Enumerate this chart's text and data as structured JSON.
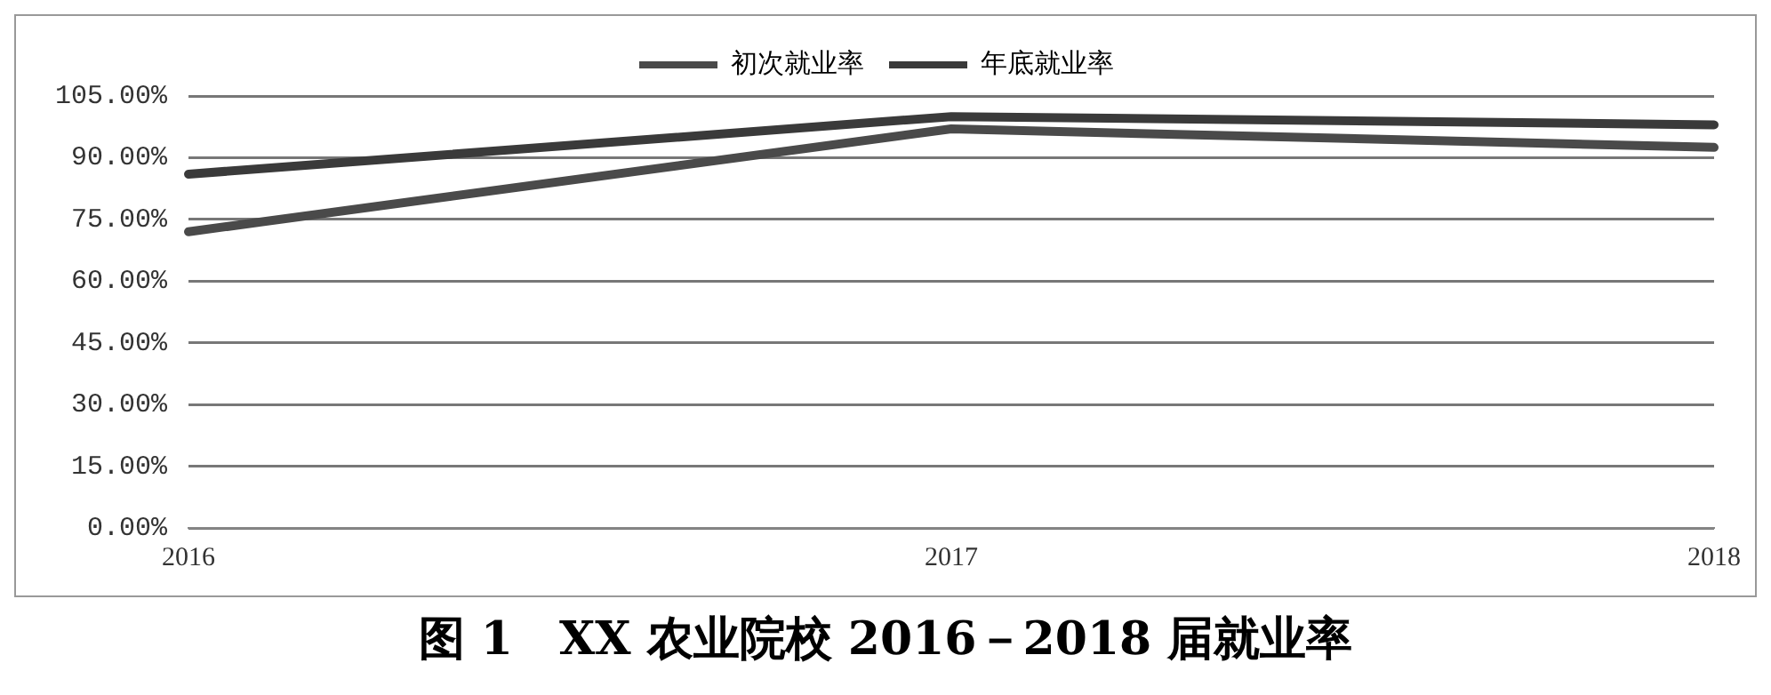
{
  "chart_data": {
    "type": "line",
    "title": "图 1　XX 农业院校 2016－2018 届就业率",
    "categories": [
      "2016",
      "2017",
      "2018"
    ],
    "series": [
      {
        "name": "初次就业率",
        "color": "#4a4a4a",
        "values": [
          72,
          97,
          92.5
        ]
      },
      {
        "name": "年底就业率",
        "color": "#3a3a3a",
        "values": [
          86,
          100,
          98
        ]
      }
    ],
    "ylim": [
      0,
      105
    ],
    "yticks": [
      {
        "value": 0,
        "label": "0.00%"
      },
      {
        "value": 15,
        "label": "15.00%"
      },
      {
        "value": 30,
        "label": "30.00%"
      },
      {
        "value": 45,
        "label": "45.00%"
      },
      {
        "value": 60,
        "label": "60.00%"
      },
      {
        "value": 75,
        "label": "75.00%"
      },
      {
        "value": 90,
        "label": "90.00%"
      },
      {
        "value": 105,
        "label": "105.00%"
      }
    ],
    "grid": "y",
    "legend": "top",
    "marker": "none",
    "line_style": "solid"
  }
}
